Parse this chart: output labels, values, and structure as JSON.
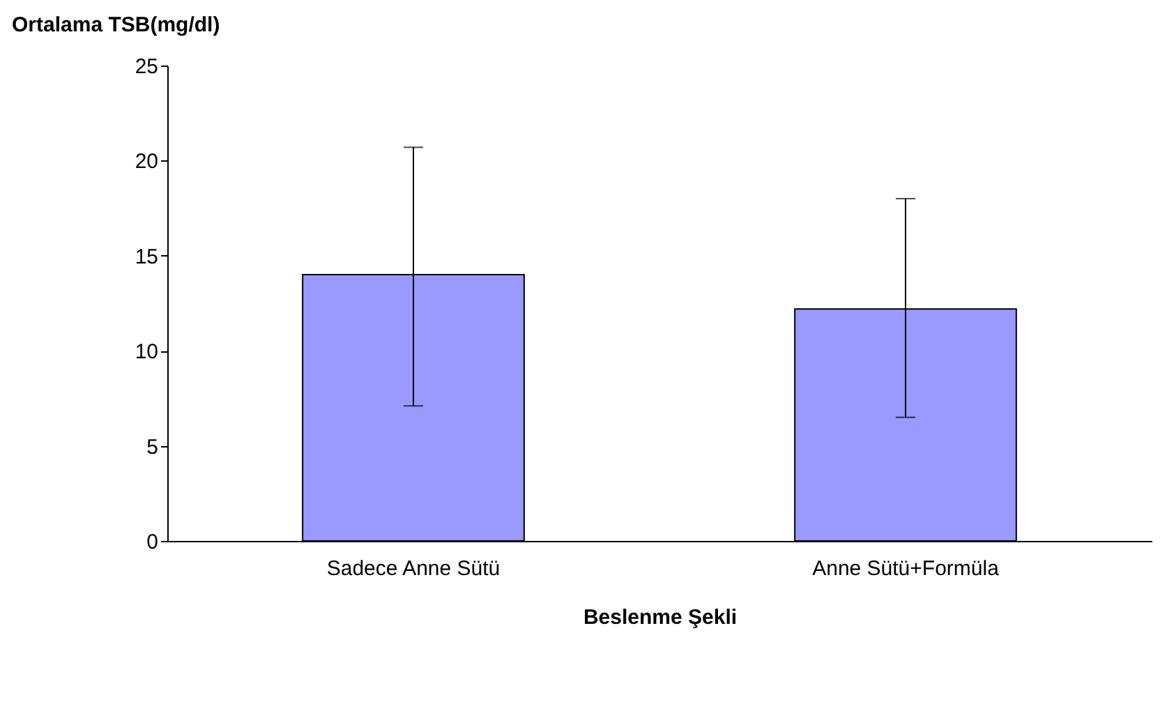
{
  "chart_data": {
    "type": "bar",
    "categories": [
      "Sadece Anne Sütü",
      "Anne Sütü+Formüla"
    ],
    "values": [
      14.0,
      12.2
    ],
    "errors": [
      [
        7.1,
        20.7
      ],
      [
        6.5,
        18.0
      ]
    ],
    "color": "#9999ff",
    "ylabel": "Ortalama TSB(mg/dl)",
    "xlabel": "Beslenme Şekli",
    "ylim": [
      0,
      25
    ],
    "yticks": [
      0,
      5,
      10,
      15,
      20,
      25
    ],
    "grid": false
  }
}
